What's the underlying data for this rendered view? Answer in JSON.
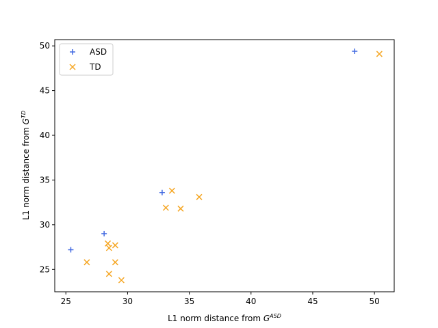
{
  "chart_data": {
    "type": "scatter",
    "title": "",
    "xlabel": {
      "prefix": "L1 norm distance from ",
      "base": "G",
      "sup": "ASD"
    },
    "ylabel": {
      "prefix": "L1 norm distance from ",
      "base": "G",
      "sup": "TD"
    },
    "xlim": [
      24.1,
      51.6
    ],
    "ylim": [
      22.5,
      50.7
    ],
    "xticks": [
      25,
      30,
      35,
      40,
      45,
      50
    ],
    "yticks": [
      25,
      30,
      35,
      40,
      45,
      50
    ],
    "grid": false,
    "legend_position": "top-left",
    "series": [
      {
        "name": "ASD",
        "marker": "plus",
        "color": "#4169e1",
        "x": [
          25.4,
          28.1,
          32.8,
          48.4
        ],
        "y": [
          27.2,
          29.0,
          33.6,
          49.4
        ]
      },
      {
        "name": "TD",
        "marker": "x",
        "color": "#f5a623",
        "x": [
          26.7,
          28.4,
          28.5,
          28.5,
          29.0,
          29.0,
          29.5,
          33.1,
          33.6,
          34.3,
          35.8,
          50.4
        ],
        "y": [
          25.8,
          27.9,
          27.4,
          24.5,
          27.7,
          25.8,
          23.8,
          31.9,
          33.8,
          31.8,
          33.1,
          49.1
        ]
      }
    ]
  }
}
